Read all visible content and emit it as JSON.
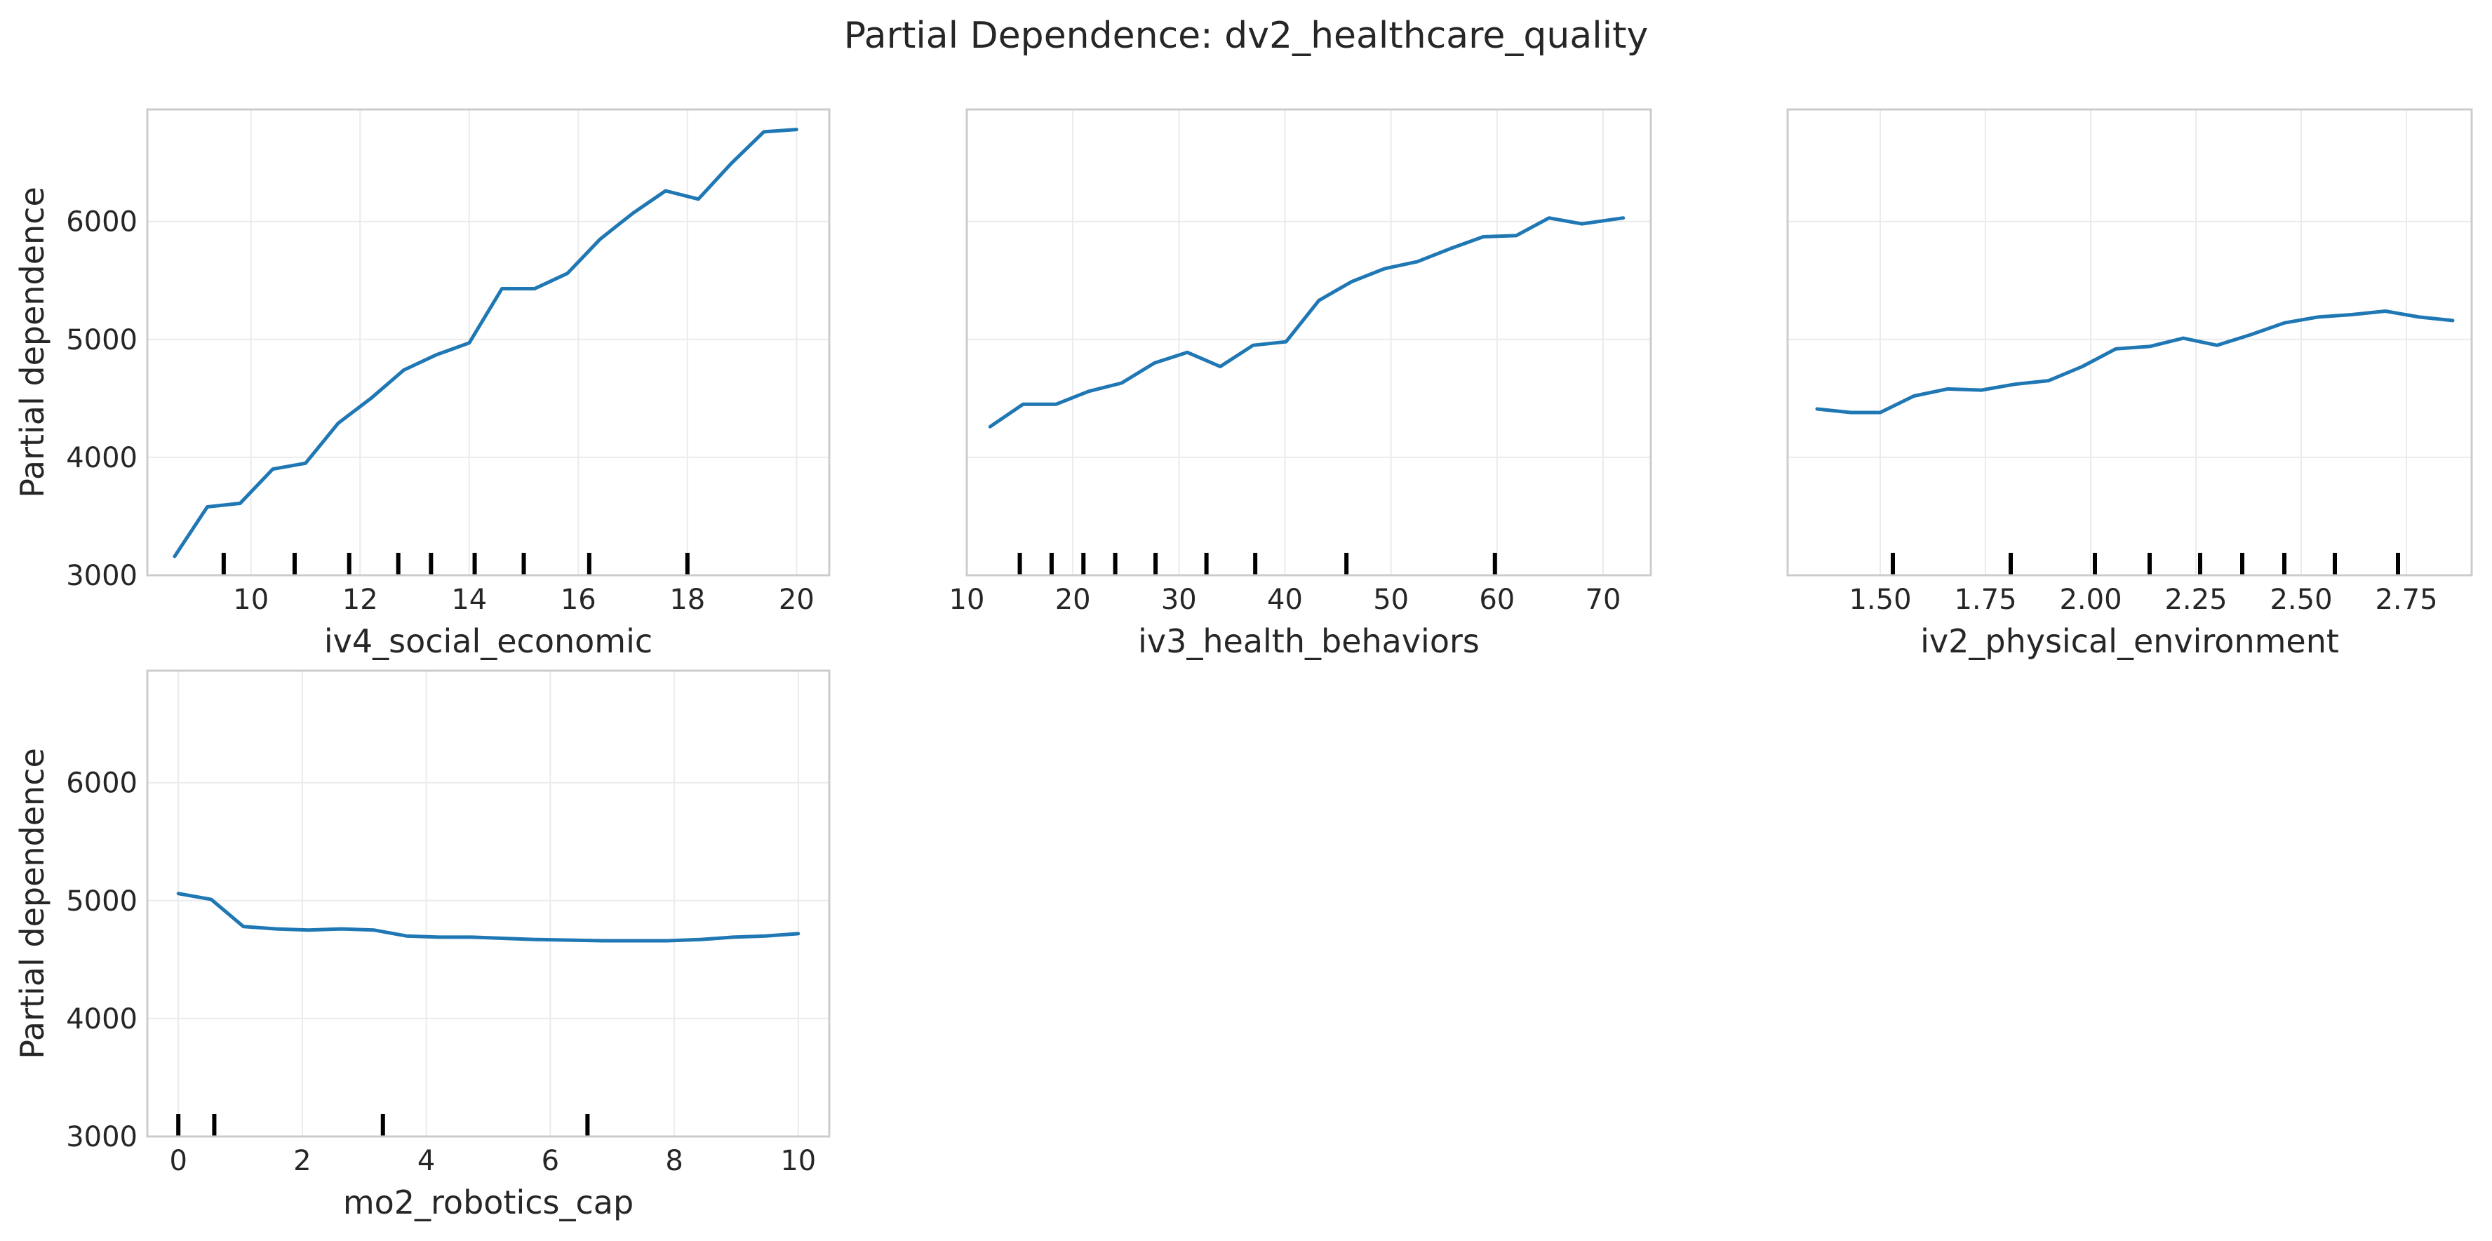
{
  "title": "Partial Dependence: dv2_healthcare_quality",
  "colors": {
    "line": "#1f77b4",
    "rug": "#000000",
    "frame": "#cccccc",
    "grid": "#ebebeb"
  },
  "chart_data": [
    {
      "type": "line",
      "xlabel": "iv4_social_economic",
      "ylabel": "Partial dependence",
      "xlim": [
        8.1,
        20.6
      ],
      "ylim": [
        3000,
        6950
      ],
      "xticks": [
        10,
        12,
        14,
        16,
        18,
        20
      ],
      "xtick_labels": [
        "10",
        "12",
        "14",
        "16",
        "18",
        "20"
      ],
      "yticks": [
        3000,
        4000,
        5000,
        6000
      ],
      "ytick_labels": [
        "3000",
        "4000",
        "5000",
        "6000"
      ],
      "grid": true,
      "x": [
        8.6,
        9.2,
        9.8,
        10.4,
        11.0,
        11.6,
        12.2,
        12.8,
        13.4,
        14.0,
        14.6,
        15.2,
        15.8,
        16.4,
        17.0,
        17.6,
        18.2,
        18.8,
        19.4,
        20.0
      ],
      "y": [
        3160,
        3580,
        3610,
        3900,
        3950,
        4290,
        4500,
        4740,
        4870,
        4970,
        5430,
        5430,
        5560,
        5850,
        6070,
        6260,
        6190,
        6490,
        6760,
        6780
      ],
      "rug": [
        9.5,
        10.8,
        11.8,
        12.7,
        13.3,
        14.1,
        15.0,
        16.2,
        18.0
      ]
    },
    {
      "type": "line",
      "xlabel": "iv3_health_behaviors",
      "ylabel": "",
      "xlim": [
        10.0,
        74.5
      ],
      "ylim": [
        3000,
        6950
      ],
      "xticks": [
        10,
        20,
        30,
        40,
        50,
        60,
        70
      ],
      "xtick_labels": [
        "10",
        "20",
        "30",
        "40",
        "50",
        "60",
        "70"
      ],
      "yticks": [
        3000,
        4000,
        5000,
        6000
      ],
      "ytick_labels": [],
      "grid": true,
      "x": [
        12.2,
        15.3,
        18.4,
        21.5,
        24.6,
        27.7,
        30.8,
        33.9,
        37.0,
        40.1,
        43.2,
        46.3,
        49.4,
        52.5,
        55.6,
        58.7,
        61.8,
        64.9,
        68.0,
        71.9
      ],
      "y": [
        4260,
        4450,
        4450,
        4560,
        4630,
        4800,
        4890,
        4770,
        4950,
        4980,
        5330,
        5490,
        5600,
        5660,
        5770,
        5870,
        5880,
        6030,
        5980,
        6030
      ],
      "rug": [
        15.0,
        18.0,
        21.0,
        24.0,
        27.8,
        32.6,
        37.2,
        45.8,
        59.8
      ]
    },
    {
      "type": "line",
      "xlabel": "iv2_physical_environment",
      "ylabel": "",
      "xlim": [
        1.28,
        2.905
      ],
      "ylim": [
        3000,
        6950
      ],
      "xticks": [
        1.5,
        1.75,
        2.0,
        2.25,
        2.5,
        2.75
      ],
      "xtick_labels": [
        "1.50",
        "1.75",
        "2.00",
        "2.25",
        "2.50",
        "2.75"
      ],
      "yticks": [
        3000,
        4000,
        5000,
        6000
      ],
      "ytick_labels": [],
      "grid": true,
      "x": [
        1.35,
        1.43,
        1.5,
        1.58,
        1.66,
        1.74,
        1.82,
        1.9,
        1.98,
        2.06,
        2.14,
        2.22,
        2.3,
        2.38,
        2.46,
        2.54,
        2.62,
        2.7,
        2.78,
        2.86
      ],
      "y": [
        4410,
        4380,
        4380,
        4520,
        4580,
        4570,
        4620,
        4650,
        4770,
        4920,
        4940,
        5010,
        4950,
        5040,
        5140,
        5190,
        5210,
        5240,
        5190,
        5160
      ],
      "rug": [
        1.53,
        1.81,
        2.01,
        2.14,
        2.26,
        2.36,
        2.46,
        2.58,
        2.73
      ]
    },
    {
      "type": "line",
      "xlabel": "mo2_robotics_cap",
      "ylabel": "Partial dependence",
      "xlim": [
        -0.5,
        10.5
      ],
      "ylim": [
        3000,
        6950
      ],
      "xticks": [
        0,
        2,
        4,
        6,
        8,
        10
      ],
      "xtick_labels": [
        "0",
        "2",
        "4",
        "6",
        "8",
        "10"
      ],
      "yticks": [
        3000,
        4000,
        5000,
        6000
      ],
      "ytick_labels": [
        "3000",
        "4000",
        "5000",
        "6000"
      ],
      "grid": true,
      "x": [
        0.0,
        0.53,
        1.05,
        1.58,
        2.1,
        2.63,
        3.16,
        3.68,
        4.21,
        4.74,
        5.26,
        5.79,
        6.32,
        6.84,
        7.37,
        7.89,
        8.42,
        8.95,
        9.47,
        10.0
      ],
      "y": [
        5060,
        5010,
        4780,
        4760,
        4750,
        4760,
        4750,
        4700,
        4690,
        4690,
        4680,
        4670,
        4665,
        4660,
        4660,
        4660,
        4670,
        4690,
        4700,
        4720
      ],
      "rug": [
        0.0,
        0.58,
        3.3,
        6.6
      ]
    }
  ]
}
